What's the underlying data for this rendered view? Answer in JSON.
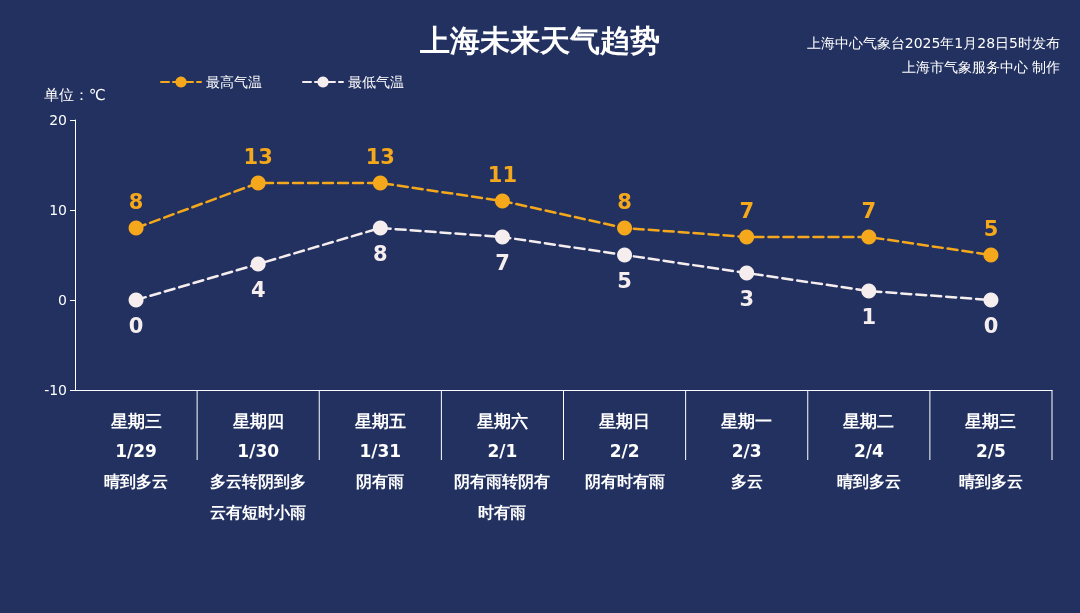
{
  "chart_data": {
    "type": "line",
    "title": "上海未来天气趋势",
    "ylabel": "单位：℃",
    "annotations": [
      "上海中心气象台2025年1月28日5时发布",
      "上海市气象服务中心 制作"
    ],
    "categories": [
      "星期三\n1/29\n晴到多云",
      "星期四\n1/30\n多云转阴到多云有短时小雨",
      "星期五\n1/31\n阴有雨",
      "星期六\n2/1\n阴有雨转阴有时有雨",
      "星期日\n2/2\n阴有时有雨",
      "星期一\n2/3\n多云",
      "星期二\n2/4\n晴到多云",
      "星期三\n2/5\n晴到多云"
    ],
    "series": [
      {
        "name": "最高气温",
        "color": "#f5a81c",
        "values": [
          8,
          13,
          13,
          11,
          8,
          7,
          7,
          5
        ]
      },
      {
        "name": "最低气温",
        "color": "#f6eeee",
        "values": [
          0,
          4,
          8,
          7,
          5,
          3,
          1,
          0
        ]
      }
    ],
    "ylim": [
      -10,
      20
    ],
    "yticks": [
      -10,
      0,
      10,
      20
    ],
    "grid": false,
    "legend": "top left",
    "marker": "circle",
    "line_style": "dashed",
    "data_labels": true
  }
}
